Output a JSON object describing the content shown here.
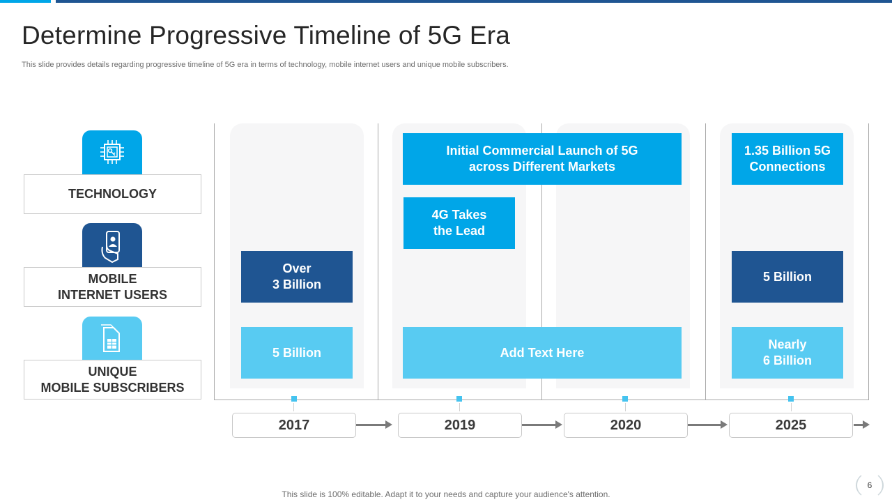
{
  "header": {
    "title": "Determine Progressive Timeline of 5G Era",
    "subtitle": "This slide provides details regarding progressive timeline of 5G era in terms of technology, mobile internet users and unique mobile subscribers."
  },
  "categories": [
    {
      "label": "TECHNOLOGY",
      "icon": "chip-key-icon",
      "color": "#00a6e8"
    },
    {
      "label": "MOBILE\nINTERNET USERS",
      "icon": "hand-phone-user-icon",
      "color": "#1f5592"
    },
    {
      "label": "UNIQUE\nMOBILE SUBSCRIBERS",
      "icon": "sim-card-icon",
      "color": "#58cbf2"
    }
  ],
  "timeline": {
    "years": [
      "2017",
      "2019",
      "2020",
      "2025"
    ],
    "technology": {
      "launch": "Initial Commercial Launch of 5G\nacross Different Markets",
      "lead_2019": "4G Takes\nthe Lead",
      "connections_2025": "1.35 Billion 5G\nConnections"
    },
    "internet_users": {
      "y2017": "Over\n3 Billion",
      "y2025": "5 Billion"
    },
    "subscribers": {
      "y2017": "5 Billion",
      "y2019_2020": "Add Text Here",
      "y2025": "Nearly\n6 Billion"
    }
  },
  "footer": {
    "note": "This slide is 100% editable. Adapt it to your needs and capture your audience's attention.",
    "page_number": "6"
  },
  "colors": {
    "dark": "#1f5592",
    "mid": "#00a6e8",
    "light": "#58cbf2"
  }
}
